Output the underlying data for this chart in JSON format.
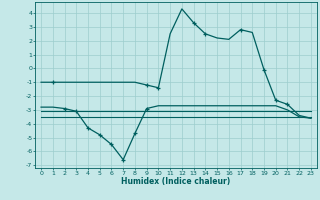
{
  "xlabel": "Humidex (Indice chaleur)",
  "xlim": [
    -0.5,
    23.5
  ],
  "ylim": [
    -7.2,
    4.8
  ],
  "yticks": [
    -7,
    -6,
    -5,
    -4,
    -3,
    -2,
    -1,
    0,
    1,
    2,
    3,
    4
  ],
  "xticks": [
    0,
    1,
    2,
    3,
    4,
    5,
    6,
    7,
    8,
    9,
    10,
    11,
    12,
    13,
    14,
    15,
    16,
    17,
    18,
    19,
    20,
    21,
    22,
    23
  ],
  "bg_color": "#c5e8e8",
  "grid_color": "#9dcece",
  "line_color": "#005f5f",
  "line1_x": [
    0,
    1,
    2,
    3,
    4,
    5,
    6,
    7,
    8,
    9,
    10,
    11,
    12,
    13,
    14,
    15,
    16,
    17,
    18,
    19,
    20,
    21,
    22,
    23
  ],
  "line1_y": [
    -1.0,
    -1.0,
    -1.0,
    -1.0,
    -1.0,
    -1.0,
    -1.0,
    -1.0,
    -1.0,
    -1.2,
    -1.4,
    2.5,
    4.3,
    3.3,
    2.5,
    2.2,
    2.1,
    2.8,
    2.6,
    -0.1,
    -2.3,
    -2.6,
    -3.4,
    -3.6
  ],
  "line2_x": [
    0,
    1,
    2,
    3,
    4,
    5,
    6,
    7,
    8,
    9,
    10,
    11,
    12,
    13,
    14,
    15,
    16,
    17,
    18,
    19,
    20,
    21,
    22,
    23
  ],
  "line2_y": [
    -2.8,
    -2.8,
    -2.9,
    -3.1,
    -4.3,
    -4.8,
    -5.5,
    -6.6,
    -4.7,
    -2.9,
    -2.7,
    -2.7,
    -2.7,
    -2.7,
    -2.7,
    -2.7,
    -2.7,
    -2.7,
    -2.7,
    -2.7,
    -2.7,
    -3.0,
    -3.5,
    -3.6
  ],
  "line3_x": [
    0,
    23
  ],
  "line3_y": [
    -3.1,
    -3.1
  ],
  "line4_x": [
    0,
    23
  ],
  "line4_y": [
    -3.5,
    -3.5
  ],
  "markers1_x": [
    1,
    9,
    10,
    13,
    14,
    17,
    19,
    20,
    21
  ],
  "markers1_y": [
    -1.0,
    -1.2,
    -1.4,
    3.3,
    2.5,
    2.8,
    -0.1,
    -2.3,
    -2.6
  ],
  "markers2_x": [
    2,
    3,
    4,
    5,
    6,
    7,
    8,
    9
  ],
  "markers2_y": [
    -2.9,
    -3.1,
    -4.3,
    -4.8,
    -5.5,
    -6.6,
    -4.7,
    -2.9
  ]
}
